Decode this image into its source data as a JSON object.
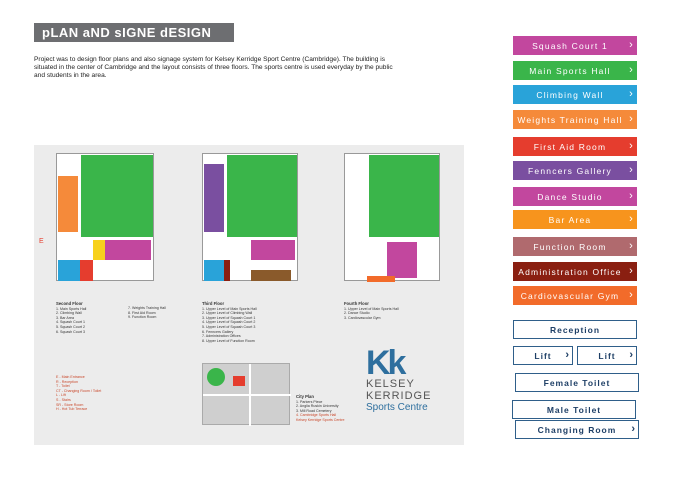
{
  "header": {
    "title": "pLAN aND sIGNE dESIGN",
    "description": "Project was to design floor plans and also signage system for Kelsey Kerridge Sport Centre (Cambridge). The building is situated in the center of Cambridge and the layout consists of three floors.  The sports centre is used everyday by the public and students in the area."
  },
  "plans": {
    "second_floor": {
      "heading": "Second Floor",
      "items": [
        "1. Main Sports Hall",
        "2. Climbing Wall",
        "3. Bar Area",
        "4. Squash Court 1",
        "5. Squash Court 2",
        "6. Squash Court 3"
      ],
      "items2": [
        "7. Weights Training Hall",
        "8. First Aid Room",
        "9. Function Room"
      ]
    },
    "third_floor": {
      "heading": "Third Floor",
      "items": [
        "1. Upper Level of Main Sports Hall",
        "2. Upper Level of Climbing Wall",
        "3. Upper Level of Squash Court 1",
        "4. Upper Level of Squash Court 2",
        "5. Upper Level of Squash Court 3",
        "6. Fenncers Gallery",
        "7. Administration Offices",
        "8. Upper Level of Function Room"
      ]
    },
    "fourth_floor": {
      "heading": "Fourth Floor",
      "items": [
        "1. Upper Level of Main Sports Hall",
        "2. Dance Studio",
        "3. Cardiovascular Gym"
      ]
    },
    "key": [
      "E - Main Entrance",
      "R - Reception",
      "T - Toilet",
      "CT - Changing Room / Toilet",
      "L - Lift",
      "S - Stairs",
      "SR - Store Room",
      "H - Hot Tub Terrace"
    ],
    "city_plan": {
      "heading": "City Plan",
      "items": [
        "1. Parkers Piece",
        "2. Anglia Ruskin University",
        "3. Mill Road Cemetery",
        "4. Cambridge Sports Hall",
        "Kelsey Kerridge Sports Centre"
      ]
    },
    "entrance_marker": "E"
  },
  "logo": {
    "monogram": "Kk",
    "line1": "KELSEY",
    "line2": "KERRIDGE",
    "line3": "Sports Centre"
  },
  "colored_signs": [
    {
      "label": "Squash Court 1",
      "color": "#c2479e"
    },
    {
      "label": "Main Sports Hall",
      "color": "#3ab54a"
    },
    {
      "label": "Climbing Wall",
      "color": "#29a3d9"
    },
    {
      "label": "Weights Training Hall",
      "color": "#f58a3a"
    },
    {
      "label": "First Aid Room",
      "color": "#e53d2e"
    },
    {
      "label": "Fenncers Gallery",
      "color": "#7a4fa0"
    },
    {
      "label": "Dance Studio",
      "color": "#c2479e"
    },
    {
      "label": "Bar Area",
      "color": "#f7941d"
    },
    {
      "label": "Function Room",
      "color": "#b06a6e"
    },
    {
      "label": "Administration Office",
      "color": "#8a1f11"
    },
    {
      "label": "Cardiovascular Gym",
      "color": "#f26b2a"
    }
  ],
  "white_signs": {
    "reception": "Reception",
    "lift_left": "Lift",
    "lift_right": "Lift",
    "female_toilet": "Female Toilet",
    "male_toilet": "Male Toilet",
    "changing_room": "Changing Room",
    "chevron": "›"
  }
}
